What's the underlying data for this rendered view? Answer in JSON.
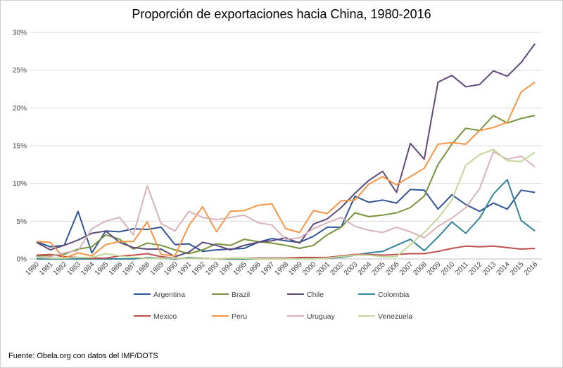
{
  "source": "Fuente: Obela.org con datos del IMF/DOTS",
  "chart_data": {
    "type": "line",
    "title": "Proporción de exportaciones hacia China, 1980-2016",
    "xlabel": "",
    "ylabel": "",
    "ylim": [
      0,
      30
    ],
    "yticks": [
      "0%",
      "5%",
      "10%",
      "15%",
      "20%",
      "25%",
      "30%"
    ],
    "grid": true,
    "legend_position": "bottom",
    "x": [
      "1980",
      "1981",
      "1982",
      "1983",
      "1984",
      "1985",
      "1986",
      "1987",
      "1988",
      "1989",
      "1990",
      "1991",
      "1992",
      "1993",
      "1994",
      "1995",
      "1996",
      "1997",
      "1998",
      "1999",
      "2000",
      "2001",
      "2002",
      "2003",
      "2004",
      "2005",
      "2006",
      "2007",
      "2008",
      "2009",
      "2010",
      "2011",
      "2012",
      "2013",
      "2014",
      "2015",
      "2016"
    ],
    "series": [
      {
        "name": "Argentina",
        "color": "#2f5597",
        "values": [
          2.3,
          1.6,
          1.8,
          6.3,
          0.8,
          3.7,
          3.6,
          4.0,
          3.9,
          4.2,
          1.9,
          2.0,
          1.0,
          1.2,
          1.3,
          1.4,
          2.2,
          2.7,
          2.4,
          2.2,
          3.0,
          4.2,
          4.2,
          8.3,
          7.5,
          7.8,
          7.4,
          9.2,
          9.1,
          6.6,
          8.5,
          7.2,
          6.3,
          7.4,
          6.6,
          9.1,
          8.8
        ]
      },
      {
        "name": "Brazil",
        "color": "#77933c",
        "values": [
          0.4,
          0.5,
          0.6,
          1.3,
          1.6,
          3.2,
          2.6,
          1.3,
          2.1,
          1.8,
          1.2,
          0.7,
          1.2,
          2.0,
          1.8,
          2.6,
          2.3,
          2.1,
          1.8,
          1.4,
          1.8,
          3.2,
          4.2,
          6.1,
          5.6,
          5.8,
          6.1,
          6.8,
          8.3,
          12.5,
          15.2,
          17.3,
          17.0,
          19.0,
          18.0,
          18.6,
          19.0
        ]
      },
      {
        "name": "Chile",
        "color": "#604a7b",
        "values": [
          2.2,
          1.2,
          1.8,
          2.5,
          3.4,
          3.7,
          2.2,
          1.5,
          1.3,
          1.3,
          0.3,
          0.9,
          2.2,
          1.8,
          1.2,
          1.8,
          2.2,
          2.4,
          2.8,
          2.1,
          4.6,
          5.3,
          6.8,
          8.7,
          10.4,
          11.6,
          8.8,
          15.3,
          13.2,
          23.4,
          24.3,
          22.8,
          23.1,
          24.9,
          24.2,
          26.0,
          28.5
        ]
      },
      {
        "name": "Colombia",
        "color": "#31849b",
        "values": [
          0.0,
          0.0,
          0.0,
          0.0,
          0.0,
          0.0,
          0.0,
          0.0,
          0.2,
          0.1,
          0.0,
          0.2,
          0.1,
          0.0,
          0.0,
          0.0,
          0.0,
          0.0,
          0.0,
          0.1,
          0.1,
          0.1,
          0.2,
          0.5,
          0.8,
          1.0,
          1.8,
          2.6,
          1.1,
          2.9,
          4.9,
          3.4,
          5.4,
          8.6,
          10.5,
          5.1,
          3.7
        ]
      },
      {
        "name": "Mexico",
        "color": "#c0504d",
        "values": [
          0.5,
          0.6,
          0.3,
          0.2,
          0.1,
          0.1,
          0.4,
          0.5,
          0.7,
          0.3,
          0.1,
          0.1,
          0.1,
          0.0,
          0.1,
          0.1,
          0.1,
          0.1,
          0.1,
          0.2,
          0.2,
          0.2,
          0.4,
          0.6,
          0.6,
          0.5,
          0.6,
          0.7,
          0.7,
          1.0,
          1.4,
          1.7,
          1.6,
          1.7,
          1.5,
          1.3,
          1.4
        ]
      },
      {
        "name": "Peru",
        "color": "#f79646",
        "values": [
          2.3,
          2.2,
          0.1,
          0.8,
          0.4,
          1.9,
          2.3,
          2.3,
          4.9,
          0.6,
          0.4,
          4.4,
          6.9,
          3.6,
          6.3,
          6.4,
          7.1,
          7.3,
          4.0,
          3.5,
          6.4,
          6.0,
          7.7,
          7.8,
          9.9,
          10.9,
          9.8,
          10.9,
          12.0,
          15.2,
          15.4,
          15.2,
          17.0,
          17.4,
          18.1,
          22.1,
          23.4
        ]
      },
      {
        "name": "Uruguay",
        "color": "#d7b3b8",
        "values": [
          0.2,
          0.3,
          0.8,
          1.1,
          4.0,
          5.0,
          5.5,
          3.2,
          9.7,
          4.7,
          3.7,
          6.3,
          5.5,
          5.2,
          5.5,
          5.8,
          4.8,
          4.5,
          2.6,
          2.8,
          4.0,
          4.8,
          5.5,
          4.3,
          3.8,
          3.5,
          4.2,
          3.6,
          2.8,
          4.3,
          5.4,
          6.8,
          9.3,
          14.2,
          13.2,
          13.6,
          12.2
        ]
      },
      {
        "name": "Venezuela",
        "color": "#c4d79b",
        "values": [
          0.2,
          0.1,
          0.1,
          0.2,
          0.2,
          0.7,
          0.4,
          0.2,
          0.1,
          0.1,
          0.1,
          0.1,
          0.1,
          0.0,
          0.1,
          0.1,
          0.0,
          0.0,
          0.0,
          0.0,
          0.0,
          0.1,
          0.3,
          0.5,
          0.5,
          0.3,
          0.3,
          1.9,
          3.5,
          5.4,
          7.8,
          12.4,
          13.8,
          14.5,
          13.0,
          12.9,
          14.1
        ]
      }
    ]
  }
}
